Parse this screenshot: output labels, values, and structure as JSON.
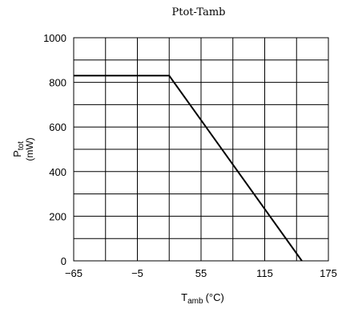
{
  "chart_data": {
    "type": "line",
    "title": "Ptot-Tamb",
    "xlabel": {
      "main": "T",
      "sub": "amb",
      "unit": "(°C)"
    },
    "ylabel": {
      "main": "P",
      "sub": "tot",
      "unit": "(mW)"
    },
    "xlim": [
      -65,
      175
    ],
    "ylim": [
      0,
      1000
    ],
    "x_tick_labels": [
      "−65",
      "−5",
      "55",
      "115",
      "175"
    ],
    "y_tick_labels": [
      "0",
      "200",
      "400",
      "600",
      "800",
      "1000"
    ],
    "x_ticks": [
      -65,
      -5,
      55,
      115,
      175
    ],
    "y_ticks": [
      0,
      200,
      400,
      600,
      800,
      1000
    ],
    "x_grid": [
      -65,
      -35,
      -5,
      25,
      55,
      85,
      115,
      145,
      175
    ],
    "y_grid": [
      0,
      100,
      200,
      300,
      400,
      500,
      600,
      700,
      800,
      900,
      1000
    ],
    "grid": true,
    "series": [
      {
        "x": [
          -65,
          25,
          150
        ],
        "y": [
          830,
          830,
          0
        ]
      }
    ],
    "colors": {
      "line": "#000000",
      "grid": "#000000",
      "background": "#ffffff"
    }
  }
}
